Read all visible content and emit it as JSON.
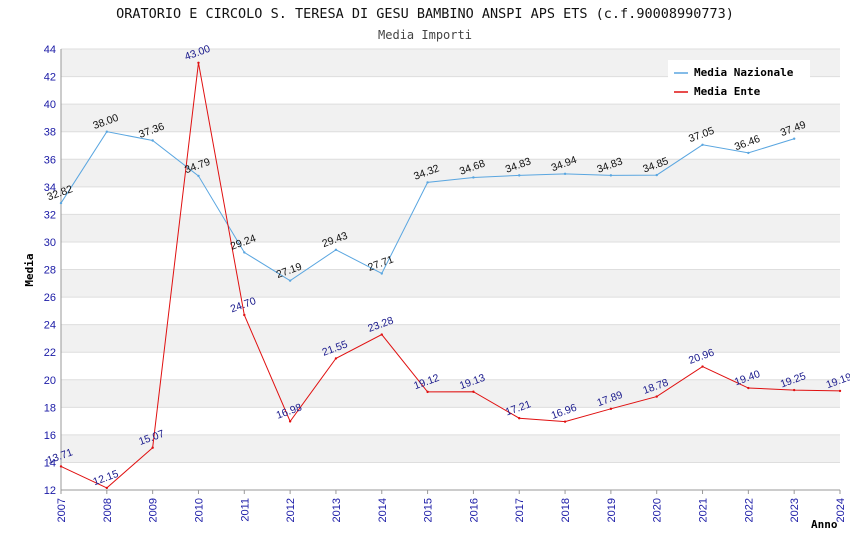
{
  "chart_data": {
    "type": "line",
    "title": "ORATORIO E CIRCOLO S. TERESA DI GESU BAMBINO ANSPI APS ETS (c.f.90008990773)",
    "subtitle": "Media Importi",
    "xlabel": "Anno",
    "ylabel": "Media",
    "ylim": [
      12,
      44
    ],
    "yticks": [
      "12",
      "14",
      "16",
      "18",
      "20",
      "22",
      "24",
      "26",
      "28",
      "30",
      "32",
      "34",
      "36",
      "38",
      "40",
      "42",
      "44"
    ],
    "x": [
      "2007",
      "2008",
      "2009",
      "2010",
      "2011",
      "2012",
      "2013",
      "2014",
      "2015",
      "2016",
      "2017",
      "2018",
      "2019",
      "2020",
      "2021",
      "2022",
      "2023",
      "2024"
    ],
    "grid": true,
    "legend_position": "top-right",
    "series": [
      {
        "name": "Media Nazionale",
        "color": "#5aa6e0",
        "values": [
          32.82,
          38.0,
          37.36,
          34.79,
          29.24,
          27.19,
          29.43,
          27.71,
          34.32,
          34.68,
          34.83,
          34.94,
          34.83,
          34.85,
          37.05,
          36.46,
          37.49,
          null
        ],
        "labels": [
          "32.82",
          "38.00",
          "37.36",
          "34.79",
          "29.24",
          "27.19",
          "29.43",
          "27.71",
          "34.32",
          "34.68",
          "34.83",
          "34.94",
          "34.83",
          "34.85",
          "37.05",
          "36.46",
          "37.49",
          ""
        ]
      },
      {
        "name": "Media Ente",
        "color": "#e01010",
        "values": [
          13.71,
          12.15,
          15.07,
          43.0,
          24.7,
          16.98,
          21.55,
          23.28,
          19.12,
          19.13,
          17.21,
          16.96,
          17.89,
          18.78,
          20.96,
          19.4,
          19.25,
          19.19
        ],
        "labels": [
          "13.71",
          "12.15",
          "15.07",
          "43.00",
          "24.70",
          "16.98",
          "21.55",
          "23.28",
          "19.12",
          "19.13",
          "17.21",
          "16.96",
          "17.89",
          "18.78",
          "20.96",
          "19.40",
          "19.25",
          "19.19"
        ]
      }
    ]
  }
}
